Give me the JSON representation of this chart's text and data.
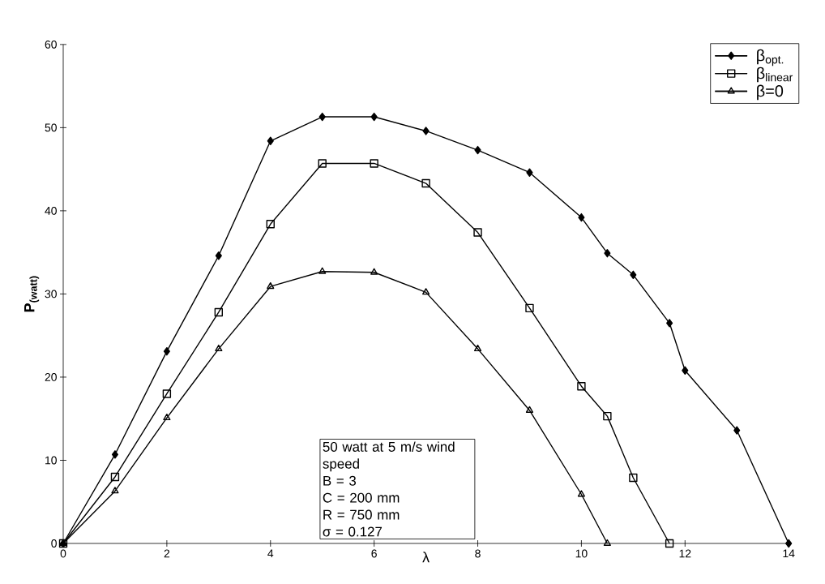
{
  "chart_data": {
    "type": "line",
    "xlabel": "λ",
    "ylabel": "P$_{(watt)}$",
    "xlim": [
      0,
      14
    ],
    "ylim": [
      0,
      60
    ],
    "xticks": [
      0,
      2,
      4,
      6,
      8,
      10,
      12,
      14
    ],
    "yticks": [
      0,
      10,
      20,
      30,
      40,
      50,
      60
    ],
    "grid": false,
    "legend": "top right",
    "line_style": "solid",
    "series": [
      {
        "name": "β$_{opt.}$",
        "color": "#000000",
        "marker": "diamond",
        "x": [
          0,
          1,
          2,
          3,
          4,
          5,
          6,
          7,
          8,
          9,
          10,
          10.5,
          11,
          11.7,
          12,
          13,
          14
        ],
        "values": [
          0,
          10.7,
          23.1,
          34.6,
          48.4,
          51.3,
          51.3,
          49.6,
          47.3,
          44.6,
          39.2,
          34.9,
          32.3,
          26.5,
          20.8,
          13.6,
          0
        ]
      },
      {
        "name": "β$_{linear}$",
        "color": "#000000",
        "marker": "square",
        "x": [
          0,
          1,
          2,
          3,
          4,
          5,
          6,
          7,
          8,
          9,
          10,
          10.5,
          11,
          11.7
        ],
        "values": [
          0,
          8.0,
          18.0,
          27.8,
          38.4,
          45.7,
          45.7,
          43.3,
          37.4,
          28.3,
          18.9,
          15.3,
          7.9,
          0
        ]
      },
      {
        "name": "β=0",
        "color": "#000000",
        "marker": "triangle",
        "x": [
          0,
          1,
          2,
          3,
          4,
          5,
          6,
          7,
          8,
          9,
          10,
          10.5
        ],
        "values": [
          0,
          6.3,
          15.1,
          23.4,
          30.9,
          32.7,
          32.6,
          30.2,
          23.4,
          16.0,
          5.9,
          0
        ]
      }
    ],
    "annotations": [
      "50 watt at 5 m/s wind speed",
      "B = 3",
      "C = 200 mm",
      "R = 750 mm",
      "σ = 0.127"
    ]
  }
}
